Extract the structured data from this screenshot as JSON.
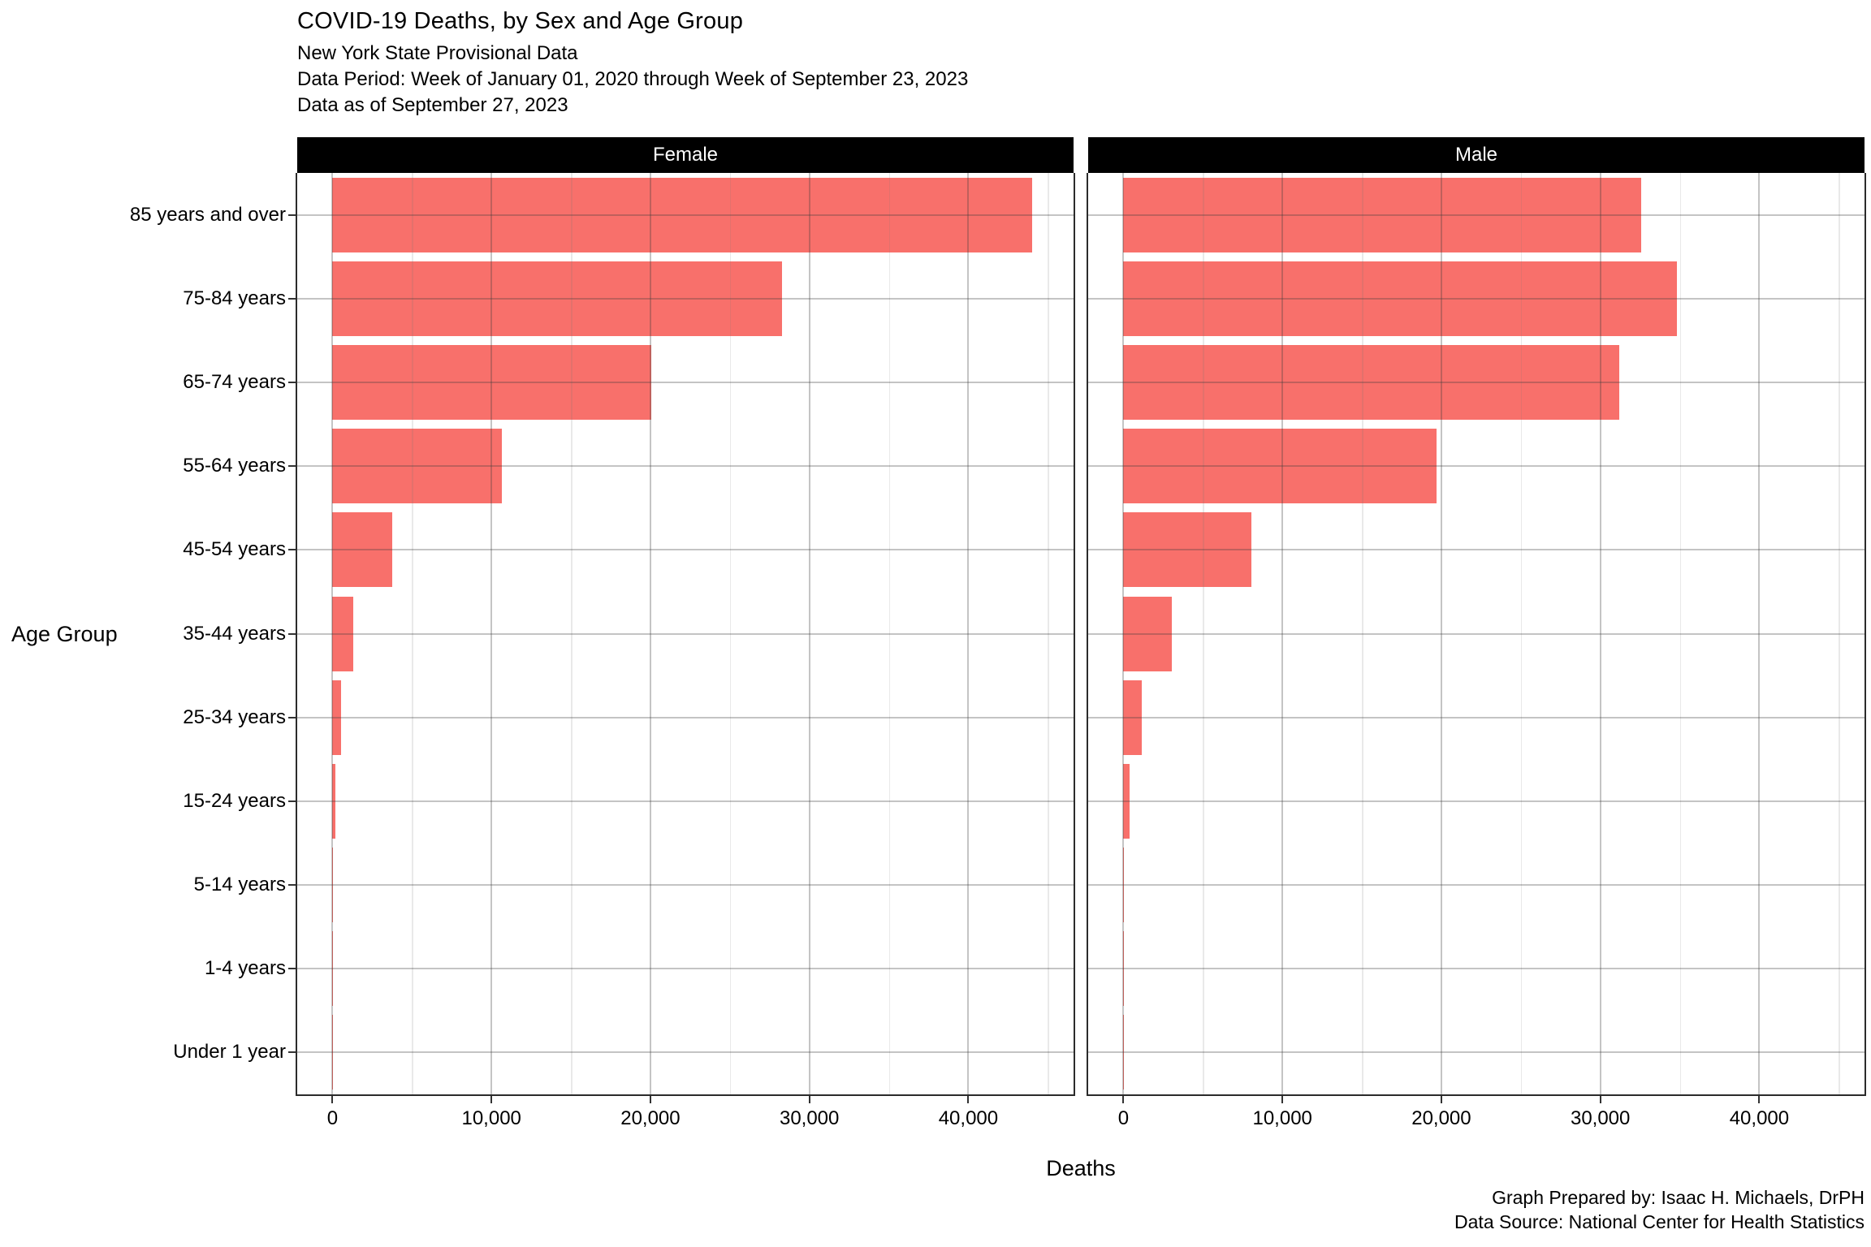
{
  "title": "COVID-19 Deaths, by Sex and Age Group",
  "subtitle_lines": [
    "New York State Provisional Data",
    "Data Period: Week of January 01, 2020 through Week of September 23, 2023",
    "Data as of September 27, 2023"
  ],
  "caption_lines": [
    "Graph Prepared by: Isaac H. Michaels, DrPH",
    "Data Source: National Center for Health Statistics"
  ],
  "axes": {
    "x_title": "Deaths",
    "y_title": "Age Group",
    "x_tick_values": [
      0,
      10000,
      20000,
      30000,
      40000
    ],
    "x_tick_labels": [
      "0",
      "10,000",
      "20,000",
      "30,000",
      "40,000"
    ],
    "x_minor_values": [
      5000,
      15000,
      25000,
      35000,
      45000
    ]
  },
  "colors": {
    "bar_fill": "#F8706B",
    "strip_bg": "#000000",
    "strip_text": "#ffffff",
    "panel_border": "#2b2b2b",
    "grid_major": "rgba(60,60,60,0.30)",
    "grid_minor": "rgba(120,120,120,0.16)"
  },
  "chart_data": {
    "type": "bar",
    "orientation": "horizontal",
    "title": "COVID-19 Deaths, by Sex and Age Group",
    "xlabel": "Deaths",
    "ylabel": "Age Group",
    "xlim": [
      0,
      46620
    ],
    "grid": "on",
    "facets": [
      "Female",
      "Male"
    ],
    "categories": [
      "85 years and over",
      "75-84 years",
      "65-74 years",
      "55-64 years",
      "45-54 years",
      "35-44 years",
      "25-34 years",
      "15-24 years",
      "5-14 years",
      "1-4 years",
      "Under 1 year"
    ],
    "series": [
      {
        "name": "Female",
        "values": [
          44000,
          28300,
          20050,
          10640,
          3740,
          1300,
          540,
          160,
          20,
          10,
          30
        ]
      },
      {
        "name": "Male",
        "values": [
          32550,
          34830,
          31170,
          19700,
          8050,
          3060,
          1150,
          400,
          25,
          10,
          35
        ]
      }
    ]
  }
}
